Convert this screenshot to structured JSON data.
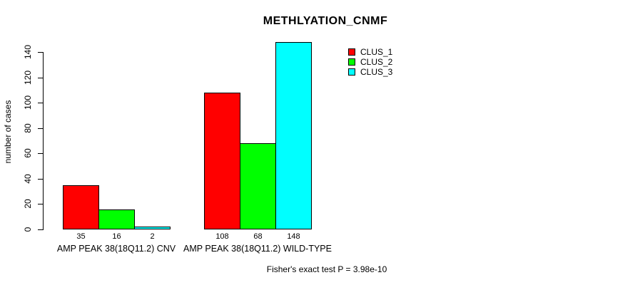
{
  "chart_data": {
    "type": "bar",
    "title": "METHLYATION_CNMF",
    "ylabel": "number of cases",
    "xlabel": "",
    "ylim": [
      0,
      140
    ],
    "yticks": [
      0,
      20,
      40,
      60,
      80,
      100,
      120,
      140
    ],
    "grid": false,
    "legend_position": "top-right-inside",
    "categories": [
      "AMP PEAK 38(18Q11.2) CNV",
      "AMP PEAK 38(18Q11.2) WILD-TYPE"
    ],
    "series": [
      {
        "name": "CLUS_1",
        "color": "#ff0000",
        "values": [
          35,
          108
        ]
      },
      {
        "name": "CLUS_2",
        "color": "#00ff00",
        "values": [
          16,
          68
        ]
      },
      {
        "name": "CLUS_3",
        "color": "#00ffff",
        "values": [
          2,
          148
        ]
      }
    ],
    "bar_border_color": "#000000",
    "footnote": "Fisher's exact test P = 3.98e-10"
  }
}
